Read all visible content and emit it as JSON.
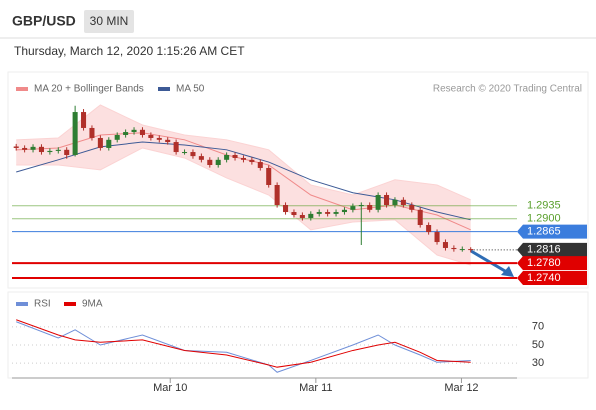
{
  "chart_data": {
    "type": "candlestick",
    "symbol": "GBP/USD",
    "interval": "30 MIN",
    "timestamp": "Thursday, March 12, 2020 1:15:26 AM CET",
    "source": "Research © 2020 Trading Central",
    "xlim": [
      0,
      60
    ],
    "xticks": [
      {
        "value": 18.8,
        "label": "Mar 10"
      },
      {
        "value": 36.1,
        "label": "Mar 11"
      },
      {
        "value": 53.4,
        "label": "Mar 12"
      }
    ],
    "ylim": [
      1.2721,
      1.3288
    ],
    "candles": {
      "up_color": "#2e7d32",
      "down_color": "#b0302a",
      "open": [
        1.3095,
        1.3091,
        1.3086,
        1.3094,
        1.308,
        1.3083,
        1.3086,
        1.3072,
        1.3188,
        1.3145,
        1.3118,
        1.3091,
        1.3113,
        1.3126,
        1.3134,
        1.314,
        1.3126,
        1.3118,
        1.3113,
        1.3107,
        1.308,
        1.308,
        1.3069,
        1.3059,
        1.3045,
        1.3059,
        1.3072,
        1.3064,
        1.3059,
        1.3053,
        1.3037,
        1.2991,
        1.2937,
        1.2918,
        1.291,
        1.2902,
        1.2913,
        1.2918,
        1.2913,
        1.2918,
        1.2924,
        1.2934,
        1.2937,
        1.2924,
        1.2964,
        1.2937,
        1.2951,
        1.2937,
        1.2924,
        1.2883,
        1.2864,
        1.2837,
        1.2821,
        1.2818,
        1.2818
      ],
      "high": [
        1.3102,
        1.3098,
        1.3101,
        1.3101,
        1.309,
        1.3093,
        1.3093,
        1.3205,
        1.3196,
        1.3152,
        1.3125,
        1.312,
        1.3133,
        1.3141,
        1.3147,
        1.3147,
        1.3133,
        1.3125,
        1.312,
        1.3114,
        1.3087,
        1.3087,
        1.3076,
        1.3066,
        1.3066,
        1.3079,
        1.3079,
        1.3071,
        1.3066,
        1.306,
        1.3044,
        1.2998,
        1.2944,
        1.2925,
        1.2917,
        1.292,
        1.2925,
        1.2925,
        1.2925,
        1.2931,
        1.2941,
        1.2944,
        1.2944,
        1.2971,
        1.2971,
        1.2958,
        1.2958,
        1.2944,
        1.2931,
        1.289,
        1.2871,
        1.2844,
        1.2828,
        1.2825,
        1.2823
      ],
      "low": [
        1.3084,
        1.3079,
        1.3079,
        1.3073,
        1.3073,
        1.3076,
        1.3062,
        1.3068,
        1.3138,
        1.3111,
        1.3084,
        1.3084,
        1.3106,
        1.3119,
        1.3127,
        1.3119,
        1.3111,
        1.3106,
        1.31,
        1.3073,
        1.3073,
        1.3062,
        1.3052,
        1.3038,
        1.3038,
        1.3052,
        1.3057,
        1.3052,
        1.3046,
        1.303,
        1.2984,
        1.293,
        1.2911,
        1.2903,
        1.2895,
        1.2895,
        1.2906,
        1.2906,
        1.2906,
        1.2911,
        1.2917,
        1.2829,
        1.2917,
        1.2917,
        1.293,
        1.293,
        1.293,
        1.2917,
        1.2876,
        1.2857,
        1.283,
        1.2814,
        1.2811,
        1.2811,
        1.2809
      ],
      "close": [
        1.3091,
        1.3086,
        1.3094,
        1.308,
        1.3083,
        1.3086,
        1.3072,
        1.3188,
        1.3145,
        1.3118,
        1.3091,
        1.3113,
        1.3126,
        1.3134,
        1.314,
        1.3126,
        1.3118,
        1.3113,
        1.3107,
        1.308,
        1.308,
        1.3069,
        1.3059,
        1.3045,
        1.3059,
        1.3072,
        1.3064,
        1.3059,
        1.3053,
        1.3037,
        1.2991,
        1.2937,
        1.2918,
        1.291,
        1.2902,
        1.2913,
        1.2918,
        1.2913,
        1.2918,
        1.2924,
        1.2934,
        1.2937,
        1.2924,
        1.2964,
        1.2937,
        1.2951,
        1.2937,
        1.2924,
        1.2883,
        1.2864,
        1.2837,
        1.2821,
        1.2818,
        1.2818,
        1.2816
      ]
    },
    "overlays": [
      {
        "name": "MA 20 + Bollinger Bands",
        "color": "#f08a8a",
        "band_color": "#fbd3d3",
        "x": [
          0,
          5,
          10,
          15,
          20,
          25,
          30,
          35,
          40,
          45,
          50,
          54
        ],
        "values": [
          1.3086,
          1.3091,
          1.3126,
          1.3132,
          1.3113,
          1.3072,
          1.3045,
          1.2964,
          1.2924,
          1.2937,
          1.291,
          1.287
        ],
        "upper": [
          1.3113,
          1.3118,
          1.3207,
          1.3153,
          1.3126,
          1.3113,
          1.3086,
          1.2991,
          1.2964,
          1.3005,
          1.2991,
          1.2951
        ],
        "lower": [
          1.3045,
          1.3045,
          1.3032,
          1.3091,
          1.3064,
          1.301,
          1.2964,
          1.287,
          1.2891,
          1.2897,
          1.2802,
          1.2775
        ]
      },
      {
        "name": "MA 50",
        "color": "#3d5a96",
        "x": [
          0,
          5,
          10,
          15,
          20,
          25,
          30,
          35,
          40,
          45,
          50,
          54
        ],
        "values": [
          1.3026,
          1.3059,
          1.3094,
          1.3107,
          1.3099,
          1.3086,
          1.3053,
          1.3005,
          1.297,
          1.2951,
          1.2918,
          1.2897
        ]
      }
    ],
    "levels": [
      {
        "value": 1.2935,
        "color": "#5aa02c",
        "style": "text"
      },
      {
        "value": 1.29,
        "label": "1.2900",
        "color": "#5aa02c",
        "style": "text"
      },
      {
        "value": 1.2865,
        "color": "#3b7ddd",
        "style": "badge"
      },
      {
        "value": 1.2816,
        "color": "#333333",
        "style": "price"
      },
      {
        "value": 1.278,
        "label": "1.2780",
        "color": "#e00000",
        "style": "strong"
      },
      {
        "value": 1.274,
        "label": "1.2740",
        "color": "#e00000",
        "style": "strong"
      }
    ],
    "rsi": {
      "ylim": [
        17,
        83
      ],
      "yticks": [
        70,
        50,
        30
      ],
      "series": [
        {
          "name": "RSI",
          "color": "#6f8fd8",
          "x": [
            0,
            5,
            7,
            10,
            15,
            20,
            25,
            30,
            31,
            35,
            40,
            43,
            45,
            48,
            50,
            54
          ],
          "values": [
            75.6,
            57.8,
            66.7,
            50,
            61,
            44,
            42,
            28,
            20,
            33,
            50,
            61,
            50,
            39,
            31,
            33
          ]
        },
        {
          "name": "9MA",
          "color": "#e00000",
          "x": [
            0,
            5,
            7,
            10,
            15,
            20,
            25,
            30,
            31,
            35,
            40,
            43,
            45,
            48,
            50,
            54
          ],
          "values": [
            77.8,
            61,
            55.6,
            53,
            55.6,
            44,
            39,
            28,
            25.6,
            31,
            44,
            50,
            53,
            42,
            33,
            31
          ]
        }
      ]
    }
  }
}
